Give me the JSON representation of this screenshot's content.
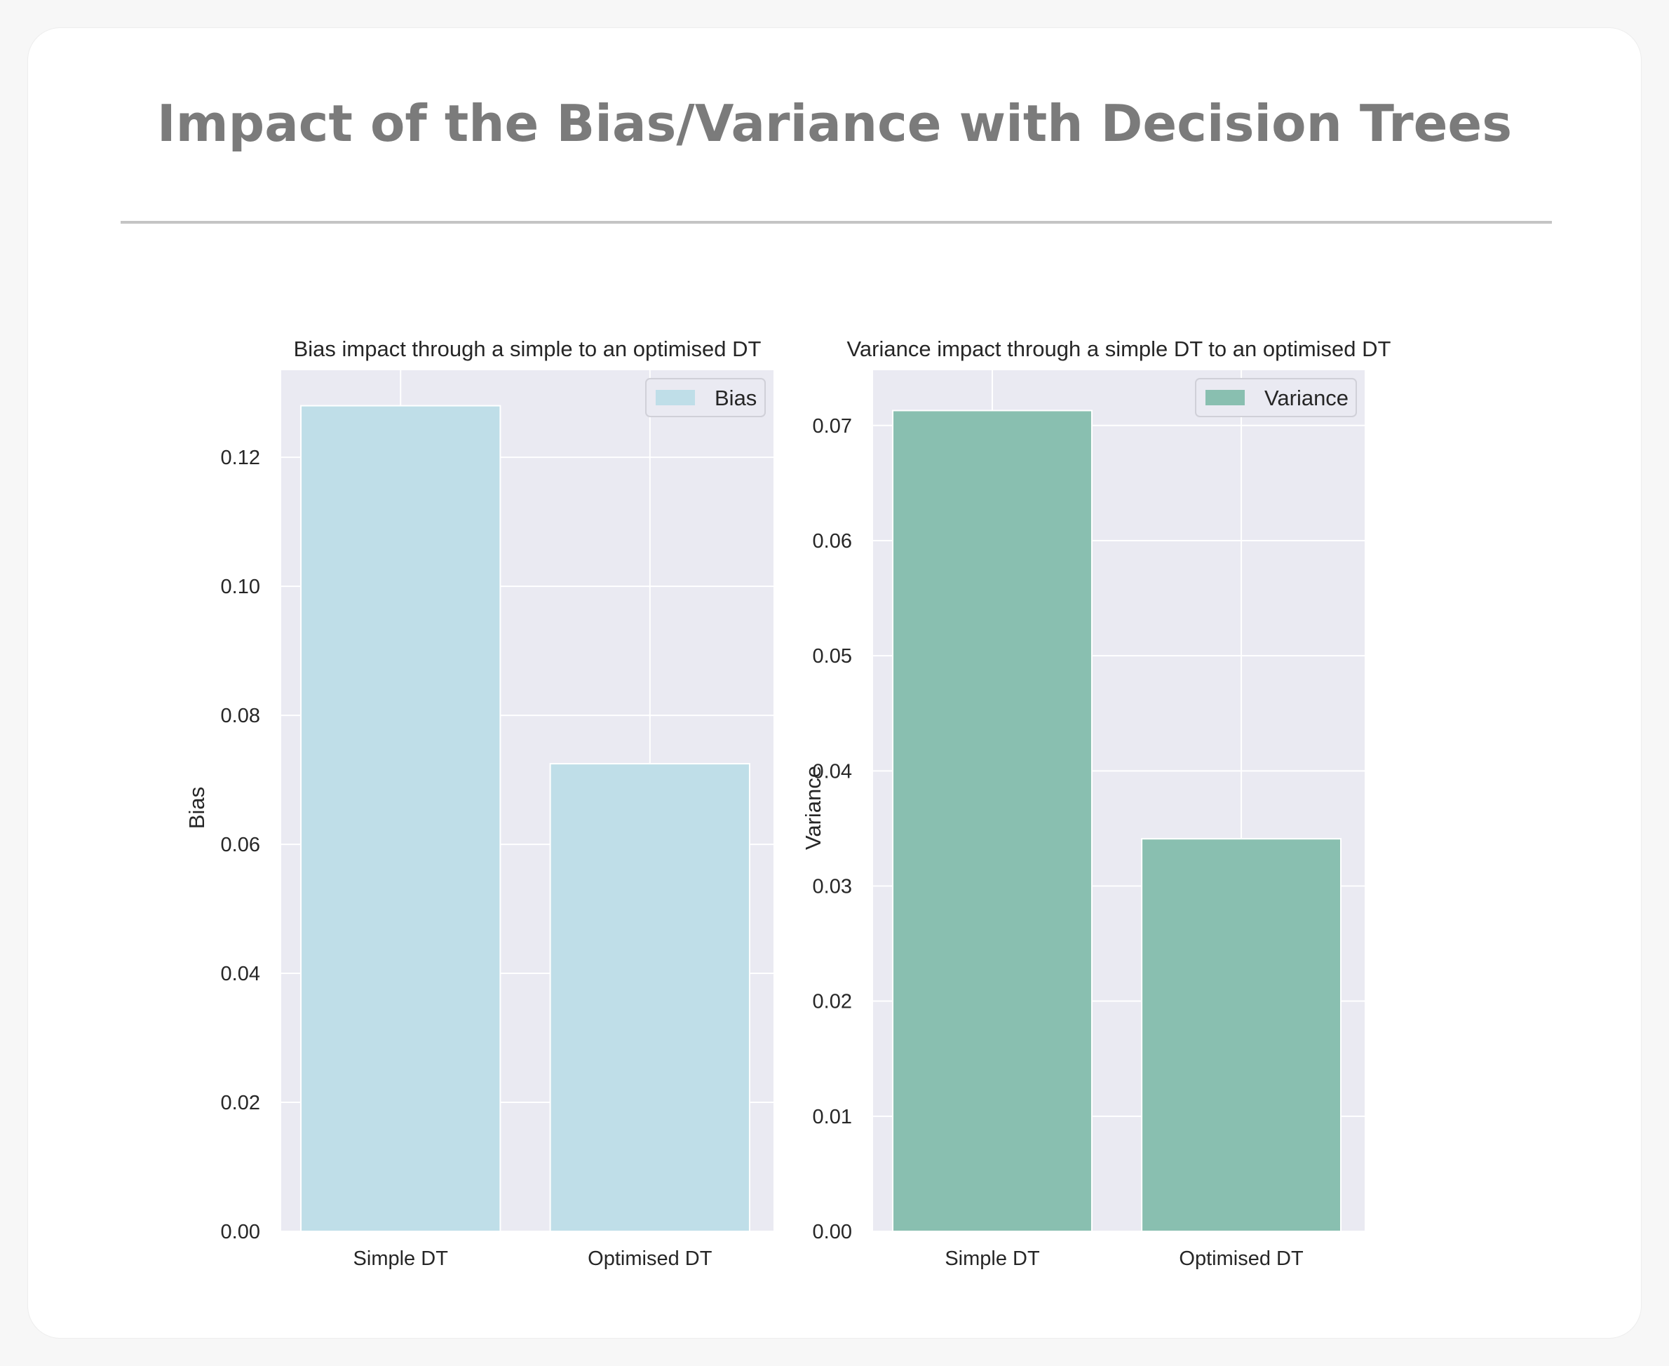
{
  "page": {
    "title": "Impact of the Bias/Variance with Decision Trees"
  },
  "colors": {
    "panel_background": "#eaeaf2",
    "grid": "#ffffff",
    "bias_bar": "#bfdee8",
    "variance_bar": "#89bfb0",
    "title_text": "#7b7b7b"
  },
  "chart_data": [
    {
      "type": "bar",
      "title": "Bias impact through a simple to an optimised DT",
      "categories": [
        "Simple DT",
        "Optimised DT"
      ],
      "series": [
        {
          "name": "Bias",
          "values": [
            0.128,
            0.0725
          ],
          "color": "#bfdee8"
        }
      ],
      "xlabel": "",
      "ylabel": "Bias",
      "ylim": [
        0,
        0.1335
      ],
      "yticks": [
        0.0,
        0.02,
        0.04,
        0.06,
        0.08,
        0.1,
        0.12
      ],
      "ytick_labels": [
        "0.00",
        "0.02",
        "0.04",
        "0.06",
        "0.08",
        "0.10",
        "0.12"
      ],
      "grid": true,
      "legend": "top-right"
    },
    {
      "type": "bar",
      "title": "Variance impact through a simple DT to an optimised DT",
      "categories": [
        "Simple DT",
        "Optimised DT"
      ],
      "series": [
        {
          "name": "Variance",
          "values": [
            0.0713,
            0.0341
          ],
          "color": "#89bfb0"
        }
      ],
      "xlabel": "",
      "ylabel": "Variance",
      "ylim": [
        0,
        0.0748
      ],
      "yticks": [
        0.0,
        0.01,
        0.02,
        0.03,
        0.04,
        0.05,
        0.06,
        0.07
      ],
      "ytick_labels": [
        "0.00",
        "0.01",
        "0.02",
        "0.03",
        "0.04",
        "0.05",
        "0.06",
        "0.07"
      ],
      "grid": true,
      "legend": "top-right"
    }
  ]
}
